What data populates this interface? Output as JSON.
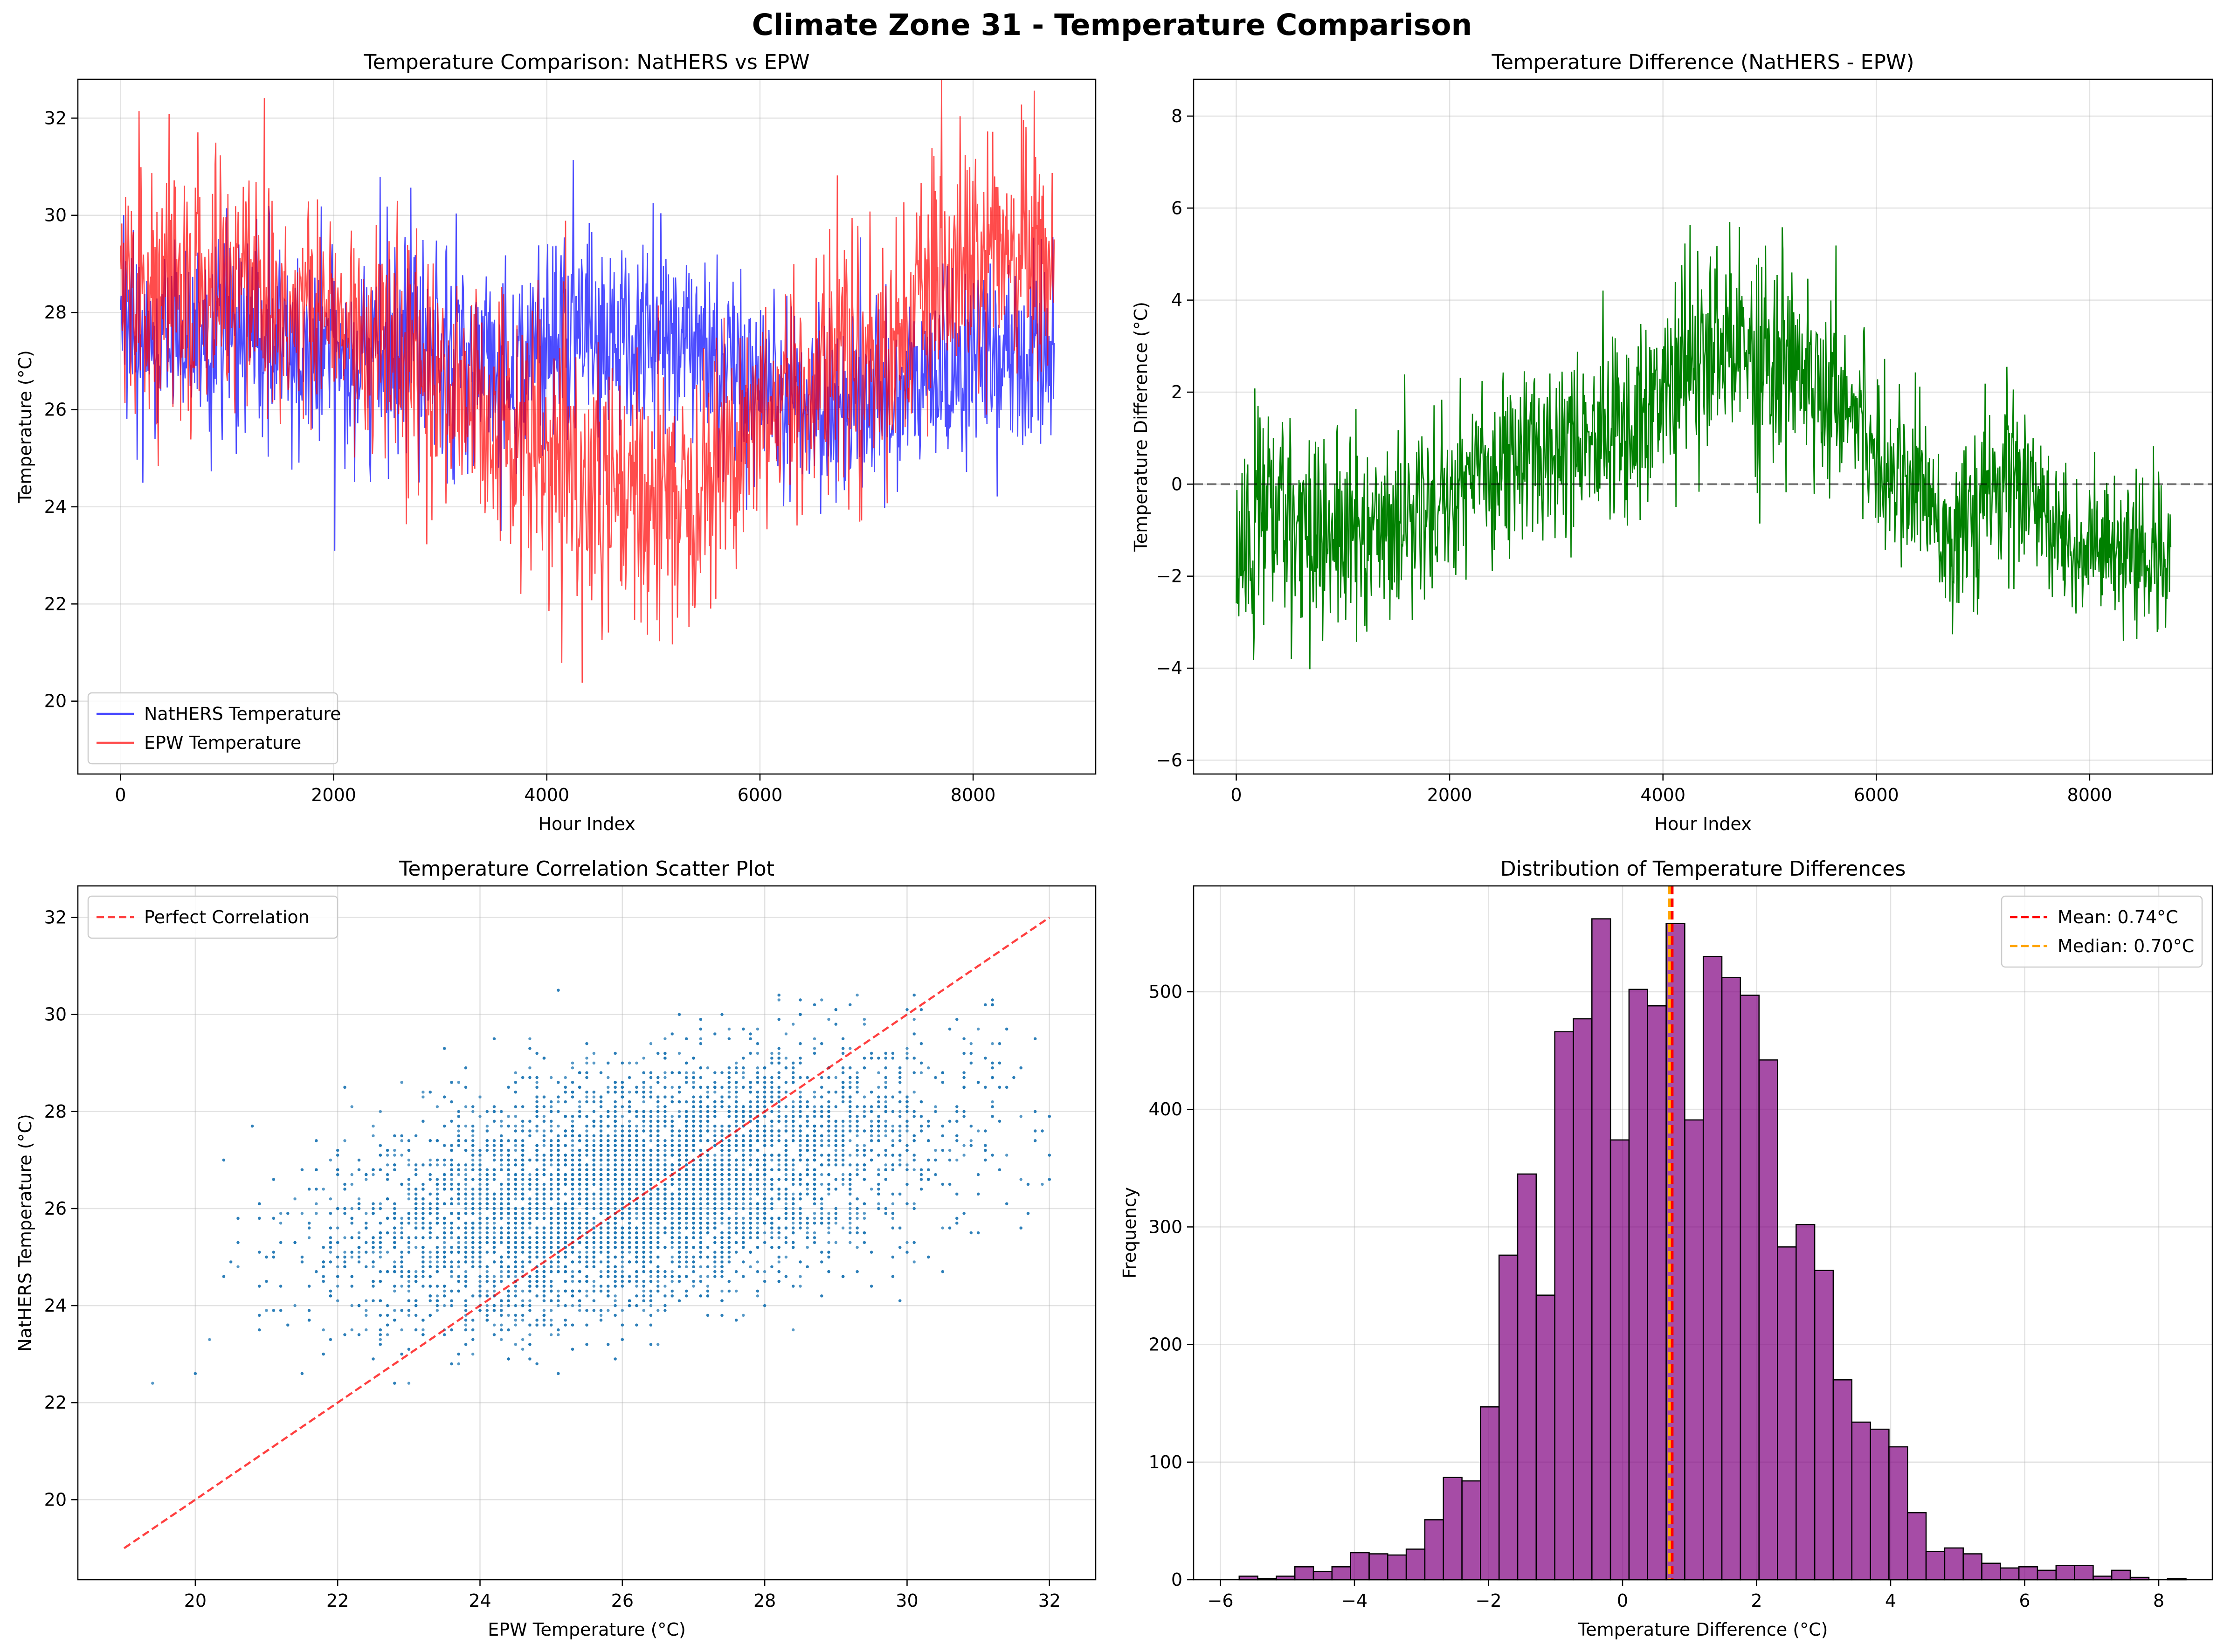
{
  "figure": {
    "suptitle": "Climate Zone 31 - Temperature Comparison"
  },
  "chart_data": [
    {
      "type": "line",
      "title": "Temperature Comparison: NatHERS vs EPW",
      "xlabel": "Hour Index",
      "ylabel": "Temperature (°C)",
      "xlim": [
        -400,
        9150
      ],
      "ylim": [
        18.5,
        32.8
      ],
      "xticks": [
        0,
        2000,
        4000,
        6000,
        8000
      ],
      "yticks": [
        20,
        22,
        24,
        26,
        28,
        30,
        32
      ],
      "grid": true,
      "legend": "lower-left",
      "series": [
        {
          "name": "NatHERS Temperature",
          "color": "#0000ff",
          "x": [
            0,
            250,
            500,
            750,
            1000,
            1250,
            1500,
            1750,
            2000,
            2250,
            2500,
            2750,
            3000,
            3250,
            3500,
            3750,
            4000,
            4250,
            4500,
            4750,
            5000,
            5250,
            5500,
            5750,
            6000,
            6250,
            6500,
            6750,
            7000,
            7250,
            7500,
            7750,
            8000,
            8250,
            8500,
            8760
          ],
          "y": [
            27.5,
            27.3,
            27.4,
            27.6,
            27.5,
            27.3,
            27.2,
            27.1,
            27.3,
            27.0,
            27.4,
            27.8,
            27.6,
            27.0,
            26.8,
            27.0,
            27.4,
            27.6,
            27.5,
            27.2,
            27.6,
            27.4,
            27.2,
            26.5,
            26.0,
            26.3,
            26.2,
            25.9,
            26.4,
            26.2,
            26.5,
            26.8,
            27.0,
            27.0,
            27.1,
            27.3
          ],
          "spread": [
            1.6,
            1.6,
            1.5,
            1.8,
            1.9,
            1.7,
            1.7,
            1.6,
            1.6,
            1.6,
            1.7,
            1.8,
            1.8,
            1.8,
            1.7,
            1.6,
            1.7,
            1.7,
            1.7,
            1.7,
            1.7,
            1.7,
            1.7,
            1.5,
            1.4,
            1.5,
            1.5,
            1.5,
            1.4,
            1.5,
            1.4,
            1.4,
            1.4,
            1.4,
            1.4,
            1.4
          ]
        },
        {
          "name": "EPW Temperature",
          "color": "#ff0000",
          "x": [
            0,
            250,
            500,
            750,
            1000,
            1250,
            1500,
            1750,
            2000,
            2250,
            2500,
            2750,
            3000,
            3250,
            3500,
            3750,
            4000,
            4250,
            4500,
            4750,
            5000,
            5250,
            5500,
            5750,
            6000,
            6250,
            6500,
            6750,
            7000,
            7250,
            7500,
            7750,
            8000,
            8250,
            8500,
            8760
          ],
          "y": [
            29.0,
            28.5,
            28.2,
            28.4,
            28.6,
            28.9,
            28.2,
            28.0,
            27.9,
            27.6,
            27.4,
            26.8,
            26.5,
            26.3,
            26.0,
            25.4,
            24.8,
            24.5,
            24.2,
            23.8,
            24.3,
            24.4,
            24.8,
            25.2,
            25.9,
            26.2,
            26.6,
            27.4,
            27.0,
            27.3,
            28.0,
            28.6,
            28.8,
            29.0,
            29.3,
            28.8
          ],
          "spread": [
            2.0,
            2.0,
            2.0,
            2.0,
            2.0,
            2.2,
            2.0,
            1.8,
            1.8,
            1.8,
            1.8,
            1.8,
            1.9,
            1.9,
            2.0,
            2.0,
            2.0,
            2.0,
            2.0,
            2.2,
            2.2,
            2.0,
            1.9,
            1.8,
            1.8,
            1.8,
            1.8,
            2.0,
            1.8,
            1.8,
            1.9,
            2.0,
            2.0,
            2.0,
            2.0,
            2.0
          ]
        }
      ]
    },
    {
      "type": "line",
      "title": "Temperature Difference (NatHERS - EPW)",
      "xlabel": "Hour Index",
      "ylabel": "Temperature Difference (°C)",
      "xlim": [
        -400,
        9150
      ],
      "ylim": [
        -6.3,
        8.8
      ],
      "xticks": [
        0,
        2000,
        4000,
        6000,
        8000
      ],
      "yticks": [
        -6,
        -4,
        -2,
        0,
        2,
        4,
        6,
        8
      ],
      "grid": true,
      "reference_line": 0,
      "series": [
        {
          "name": "",
          "color": "#008000",
          "x": [
            0,
            250,
            500,
            750,
            1000,
            1250,
            1500,
            1750,
            2000,
            2250,
            2500,
            2750,
            3000,
            3250,
            3500,
            3750,
            4000,
            4250,
            4500,
            4750,
            5000,
            5250,
            5500,
            5750,
            6000,
            6250,
            6500,
            6750,
            7000,
            7250,
            7500,
            7750,
            8000,
            8250,
            8500,
            8760
          ],
          "y": [
            -2.0,
            -0.5,
            -0.8,
            -1.0,
            -1.2,
            -1.0,
            -0.8,
            -0.5,
            -0.2,
            0.3,
            0.5,
            0.6,
            0.9,
            1.2,
            1.0,
            1.4,
            2.0,
            2.6,
            2.8,
            3.0,
            2.8,
            2.6,
            2.2,
            1.9,
            0.7,
            0.2,
            -0.3,
            -1.3,
            -0.5,
            0.3,
            -0.6,
            -1.2,
            -1.4,
            -1.6,
            -1.8,
            -1.2
          ],
          "spread": [
            1.6,
            2.5,
            1.6,
            1.8,
            1.8,
            1.6,
            1.6,
            1.5,
            1.6,
            1.6,
            1.6,
            1.6,
            1.6,
            1.6,
            1.6,
            1.6,
            1.6,
            1.8,
            1.8,
            2.4,
            2.2,
            1.7,
            1.6,
            1.5,
            1.5,
            1.4,
            1.4,
            1.4,
            1.4,
            1.6,
            1.4,
            1.3,
            1.3,
            1.3,
            1.3,
            1.6
          ]
        }
      ]
    },
    {
      "type": "scatter",
      "title": "Temperature Correlation Scatter Plot",
      "xlabel": "EPW Temperature (°C)",
      "ylabel": "NatHERS Temperature (°C)",
      "xlim": [
        18.35,
        32.65
      ],
      "ylim": [
        18.35,
        32.65
      ],
      "xticks": [
        20,
        22,
        24,
        26,
        28,
        30,
        32
      ],
      "yticks": [
        20,
        22,
        24,
        26,
        28,
        30,
        32
      ],
      "grid": true,
      "legend": "top-left",
      "point_color": "#1f77b4",
      "point_count": 8760,
      "cluster": {
        "x_mean": 26.2,
        "y_mean": 26.4,
        "x_sd": 2.0,
        "y_sd": 1.3,
        "r": 0.45
      },
      "reference": {
        "name": "Perfect Correlation",
        "color": "#ff0000",
        "x": [
          19,
          32
        ],
        "y": [
          19,
          32
        ]
      }
    },
    {
      "type": "bar",
      "title": "Distribution of Temperature Differences",
      "xlabel": "Temperature Difference (°C)",
      "ylabel": "Frequency",
      "xlim": [
        -6.4,
        8.8
      ],
      "ylim": [
        0,
        590
      ],
      "xticks": [
        -6,
        -4,
        -2,
        0,
        2,
        4,
        6,
        8
      ],
      "yticks": [
        0,
        100,
        200,
        300,
        400,
        500
      ],
      "grid": true,
      "legend": "top-right",
      "bar_color": "#800080",
      "bin_start": -5.72,
      "bin_width": 0.277,
      "counts": [
        3,
        1,
        3,
        11,
        7,
        11,
        23,
        22,
        21,
        26,
        51,
        87,
        84,
        147,
        276,
        345,
        242,
        466,
        477,
        562,
        374,
        502,
        488,
        558,
        391,
        530,
        512,
        497,
        442,
        283,
        302,
        263,
        170,
        134,
        128,
        113,
        57,
        24,
        27,
        22,
        14,
        10,
        11,
        8,
        12,
        12,
        3,
        8,
        2,
        0,
        1
      ],
      "markers": [
        {
          "name": "Mean: 0.74°C",
          "value": 0.74,
          "color": "#ff0000"
        },
        {
          "name": "Median: 0.70°C",
          "value": 0.7,
          "color": "#ffa500"
        }
      ]
    }
  ]
}
